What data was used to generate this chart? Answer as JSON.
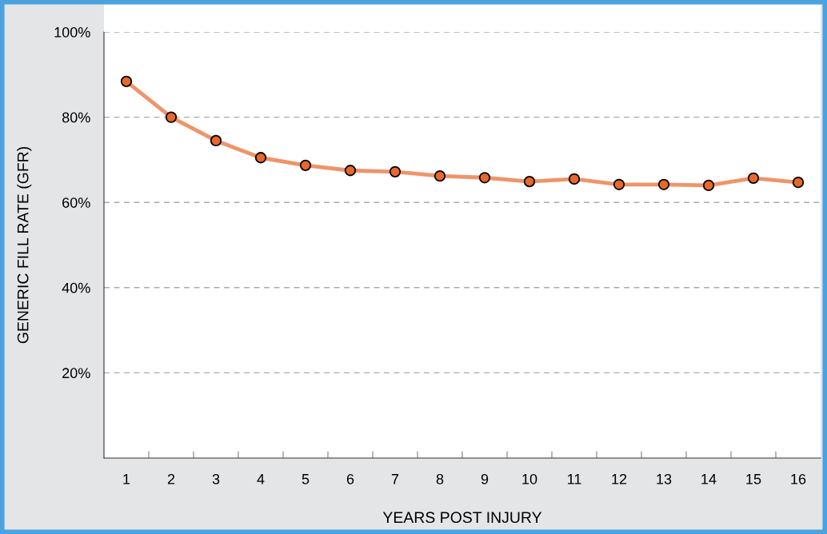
{
  "chart_data": {
    "type": "line",
    "xlabel": "YEARS POST INJURY",
    "ylabel": "GENERIC FILL RATE (GFR)",
    "categories": [
      "1",
      "2",
      "3",
      "4",
      "5",
      "6",
      "7",
      "8",
      "9",
      "10",
      "11",
      "12",
      "13",
      "14",
      "15",
      "16"
    ],
    "series": [
      {
        "color": "#e8672a",
        "values": [
          88.4,
          80,
          74.5,
          70.5,
          68.7,
          67.5,
          67.2,
          66.2,
          65.8,
          64.9,
          65.5,
          64.2,
          64.2,
          64.0,
          65.7,
          64.7
        ]
      }
    ],
    "ylim": [
      0,
      100
    ],
    "yticks": [
      {
        "value": 20,
        "label": "20%"
      },
      {
        "value": 40,
        "label": "40%"
      },
      {
        "value": 60,
        "label": "60%"
      },
      {
        "value": 80,
        "label": "80%"
      },
      {
        "value": 100,
        "label": "100%"
      }
    ],
    "grid": "y",
    "marker": "circle",
    "line_style": "solid"
  }
}
